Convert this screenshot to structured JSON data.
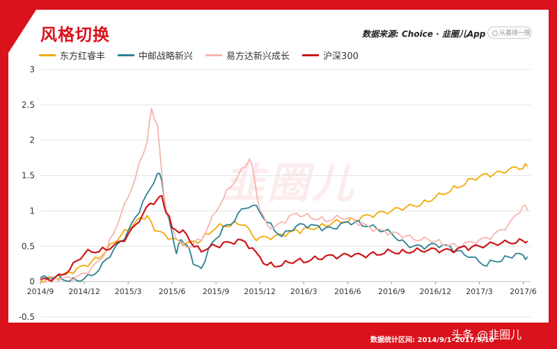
{
  "header": {
    "title": "风格切换",
    "source": "数据来源: Choice · 韭圈儿App",
    "search_placeholder": "从基排一搜"
  },
  "watermark": "韭圈儿",
  "footer": {
    "range_label": "数据统计区间: 2014/9/1–2017/9/10",
    "credit": "头条 @韭圈儿"
  },
  "colors": {
    "background": "#d9121c",
    "east_red": "#f2a900",
    "zhongyou": "#2b7f93",
    "yifangda": "#f5b5ae",
    "hs300": "#cc1418"
  },
  "chart_data": {
    "type": "line",
    "x_ticks": [
      "2014/9",
      "2014/12",
      "2015/3",
      "2015/6",
      "2015/9",
      "2015/12",
      "2016/3",
      "2016/6",
      "2016/9",
      "2016/12",
      "2017/3",
      "2017/6"
    ],
    "y_ticks": [
      "3",
      "2.5",
      "2",
      "1.5",
      "1",
      "0.5",
      "0",
      "-0.5"
    ],
    "ylim": [
      -0.5,
      3
    ],
    "grid": true,
    "legend": "top-left",
    "series": [
      {
        "name": "东方红睿丰",
        "color": "#f2a900",
        "points": [
          [
            0,
            0.02
          ],
          [
            0.5,
            0.03
          ],
          [
            1,
            0.05
          ],
          [
            1.5,
            0.08
          ],
          [
            2,
            0.12
          ],
          [
            2.5,
            0.17
          ],
          [
            3,
            0.21
          ],
          [
            3.5,
            0.28
          ],
          [
            4,
            0.35
          ],
          [
            4.5,
            0.45
          ],
          [
            5,
            0.55
          ],
          [
            5.5,
            0.66
          ],
          [
            6,
            0.75
          ],
          [
            6.5,
            0.85
          ],
          [
            7,
            0.9
          ],
          [
            7.3,
            0.92
          ],
          [
            7.6,
            0.8
          ],
          [
            8,
            0.7
          ],
          [
            8.5,
            0.65
          ],
          [
            9,
            0.6
          ],
          [
            9.5,
            0.55
          ],
          [
            10,
            0.53
          ],
          [
            10.5,
            0.55
          ],
          [
            11,
            0.6
          ],
          [
            11.5,
            0.7
          ],
          [
            12,
            0.78
          ],
          [
            12.5,
            0.8
          ],
          [
            13,
            0.82
          ],
          [
            13.5,
            0.84
          ],
          [
            14,
            0.82
          ],
          [
            14.5,
            0.62
          ],
          [
            15,
            0.6
          ],
          [
            15.5,
            0.62
          ],
          [
            16,
            0.63
          ],
          [
            16.5,
            0.66
          ],
          [
            17,
            0.68
          ],
          [
            17.5,
            0.7
          ],
          [
            18,
            0.72
          ],
          [
            18.5,
            0.76
          ],
          [
            19,
            0.78
          ],
          [
            19.5,
            0.8
          ],
          [
            20,
            0.84
          ],
          [
            20.5,
            0.86
          ],
          [
            21,
            0.87
          ],
          [
            21.5,
            0.88
          ],
          [
            22,
            0.9
          ],
          [
            22.5,
            0.93
          ],
          [
            23,
            0.95
          ],
          [
            23.5,
            0.98
          ],
          [
            24,
            1.0
          ],
          [
            24.5,
            1.03
          ],
          [
            25,
            1.05
          ],
          [
            25.5,
            1.08
          ],
          [
            26,
            1.1
          ],
          [
            26.5,
            1.15
          ],
          [
            27,
            1.2
          ],
          [
            27.5,
            1.25
          ],
          [
            28,
            1.3
          ],
          [
            28.5,
            1.35
          ],
          [
            29,
            1.4
          ],
          [
            29.5,
            1.45
          ],
          [
            30,
            1.48
          ],
          [
            30.5,
            1.5
          ],
          [
            31,
            1.52
          ],
          [
            31.5,
            1.55
          ],
          [
            32,
            1.58
          ],
          [
            32.5,
            1.6
          ],
          [
            33,
            1.63
          ],
          [
            33.3,
            1.65
          ]
        ]
      },
      {
        "name": "中邮战略新兴",
        "color": "#2b7f93",
        "points": [
          [
            0,
            0.05
          ],
          [
            0.5,
            0.06
          ],
          [
            1,
            0.08
          ],
          [
            1.5,
            0.05
          ],
          [
            2,
            0.03
          ],
          [
            2.5,
            0.02
          ],
          [
            3,
            0.05
          ],
          [
            3.5,
            0.1
          ],
          [
            4,
            0.18
          ],
          [
            4.5,
            0.3
          ],
          [
            5,
            0.45
          ],
          [
            5.5,
            0.55
          ],
          [
            6,
            0.7
          ],
          [
            6.5,
            0.9
          ],
          [
            7,
            1.1
          ],
          [
            7.5,
            1.3
          ],
          [
            8,
            1.55
          ],
          [
            8.3,
            1.45
          ],
          [
            8.6,
            1.0
          ],
          [
            9,
            0.7
          ],
          [
            9.3,
            0.4
          ],
          [
            9.6,
            0.6
          ],
          [
            10,
            0.55
          ],
          [
            10.3,
            0.35
          ],
          [
            10.6,
            0.2
          ],
          [
            11,
            0.18
          ],
          [
            11.5,
            0.45
          ],
          [
            12,
            0.6
          ],
          [
            12.5,
            0.75
          ],
          [
            13,
            0.8
          ],
          [
            13.5,
            0.95
          ],
          [
            14,
            1.05
          ],
          [
            14.5,
            1.1
          ],
          [
            15,
            1.0
          ],
          [
            15.5,
            0.85
          ],
          [
            16,
            0.75
          ],
          [
            16.5,
            0.65
          ],
          [
            17,
            0.72
          ],
          [
            17.5,
            0.78
          ],
          [
            18,
            0.8
          ],
          [
            18.5,
            0.78
          ],
          [
            19,
            0.76
          ],
          [
            19.5,
            0.74
          ],
          [
            20,
            0.75
          ],
          [
            20.5,
            0.8
          ],
          [
            21,
            0.82
          ],
          [
            21.5,
            0.85
          ],
          [
            22,
            0.82
          ],
          [
            22.5,
            0.8
          ],
          [
            23,
            0.75
          ],
          [
            23.5,
            0.72
          ],
          [
            24,
            0.7
          ],
          [
            24.5,
            0.6
          ],
          [
            25,
            0.52
          ],
          [
            25.5,
            0.5
          ],
          [
            26,
            0.48
          ],
          [
            26.5,
            0.5
          ],
          [
            27,
            0.52
          ],
          [
            27.5,
            0.5
          ],
          [
            28,
            0.48
          ],
          [
            28.5,
            0.42
          ],
          [
            29,
            0.4
          ],
          [
            29.5,
            0.35
          ],
          [
            30,
            0.28
          ],
          [
            30.5,
            0.25
          ],
          [
            31,
            0.3
          ],
          [
            31.5,
            0.32
          ],
          [
            32,
            0.35
          ],
          [
            32.5,
            0.38
          ],
          [
            33,
            0.36
          ],
          [
            33.3,
            0.33
          ]
        ]
      },
      {
        "name": "易方达新兴成长",
        "color": "#f5b5ae",
        "points": [
          [
            0,
            0.02
          ],
          [
            0.5,
            0.03
          ],
          [
            1,
            0.05
          ],
          [
            1.5,
            0.04
          ],
          [
            2,
            0.03
          ],
          [
            2.5,
            0.06
          ],
          [
            3,
            0.1
          ],
          [
            3.5,
            0.18
          ],
          [
            4,
            0.28
          ],
          [
            4.5,
            0.45
          ],
          [
            5,
            0.7
          ],
          [
            5.5,
            0.95
          ],
          [
            6,
            1.2
          ],
          [
            6.5,
            1.5
          ],
          [
            7,
            1.8
          ],
          [
            7.3,
            2.0
          ],
          [
            7.6,
            2.45
          ],
          [
            8,
            2.2
          ],
          [
            8.3,
            1.5
          ],
          [
            8.6,
            1.0
          ],
          [
            9,
            0.75
          ],
          [
            9.5,
            0.55
          ],
          [
            10,
            0.48
          ],
          [
            10.5,
            0.55
          ],
          [
            11,
            0.6
          ],
          [
            11.5,
            0.8
          ],
          [
            12,
            1.0
          ],
          [
            12.5,
            1.2
          ],
          [
            13,
            1.35
          ],
          [
            13.5,
            1.5
          ],
          [
            14,
            1.65
          ],
          [
            14.3,
            1.75
          ],
          [
            14.6,
            1.5
          ],
          [
            15,
            1.0
          ],
          [
            15.5,
            0.8
          ],
          [
            16,
            0.75
          ],
          [
            16.5,
            0.82
          ],
          [
            17,
            0.9
          ],
          [
            17.5,
            0.95
          ],
          [
            18,
            0.95
          ],
          [
            18.5,
            0.92
          ],
          [
            19,
            0.9
          ],
          [
            19.5,
            0.88
          ],
          [
            20,
            0.9
          ],
          [
            20.5,
            0.92
          ],
          [
            21,
            0.9
          ],
          [
            21.5,
            0.85
          ],
          [
            22,
            0.8
          ],
          [
            22.5,
            0.75
          ],
          [
            23,
            0.72
          ],
          [
            23.5,
            0.7
          ],
          [
            24,
            0.68
          ],
          [
            24.5,
            0.66
          ],
          [
            25,
            0.64
          ],
          [
            25.5,
            0.62
          ],
          [
            26,
            0.6
          ],
          [
            26.5,
            0.6
          ],
          [
            27,
            0.58
          ],
          [
            27.5,
            0.55
          ],
          [
            28,
            0.52
          ],
          [
            28.5,
            0.5
          ],
          [
            29,
            0.52
          ],
          [
            29.5,
            0.55
          ],
          [
            30,
            0.58
          ],
          [
            30.5,
            0.6
          ],
          [
            31,
            0.65
          ],
          [
            31.5,
            0.72
          ],
          [
            32,
            0.8
          ],
          [
            32.5,
            0.92
          ],
          [
            33,
            1.08
          ],
          [
            33.3,
            1.02
          ]
        ]
      },
      {
        "name": "沪深300",
        "color": "#cc1418",
        "points": [
          [
            0,
            0.02
          ],
          [
            0.5,
            0.02
          ],
          [
            1,
            0.05
          ],
          [
            1.5,
            0.1
          ],
          [
            2,
            0.18
          ],
          [
            2.5,
            0.3
          ],
          [
            3,
            0.4
          ],
          [
            3.5,
            0.45
          ],
          [
            4,
            0.43
          ],
          [
            4.5,
            0.48
          ],
          [
            5,
            0.5
          ],
          [
            5.5,
            0.55
          ],
          [
            6,
            0.65
          ],
          [
            6.5,
            0.8
          ],
          [
            7,
            0.95
          ],
          [
            7.5,
            1.1
          ],
          [
            8,
            1.15
          ],
          [
            8.3,
            1.2
          ],
          [
            8.6,
            1.0
          ],
          [
            9,
            0.8
          ],
          [
            9.5,
            0.72
          ],
          [
            10,
            0.68
          ],
          [
            10.5,
            0.5
          ],
          [
            11,
            0.45
          ],
          [
            11.5,
            0.5
          ],
          [
            12,
            0.5
          ],
          [
            12.5,
            0.52
          ],
          [
            13,
            0.55
          ],
          [
            13.5,
            0.57
          ],
          [
            14,
            0.55
          ],
          [
            14.5,
            0.45
          ],
          [
            15,
            0.32
          ],
          [
            15.5,
            0.25
          ],
          [
            16,
            0.24
          ],
          [
            16.5,
            0.25
          ],
          [
            17,
            0.28
          ],
          [
            17.5,
            0.3
          ],
          [
            18,
            0.3
          ],
          [
            18.5,
            0.32
          ],
          [
            19,
            0.34
          ],
          [
            19.5,
            0.35
          ],
          [
            20,
            0.35
          ],
          [
            20.5,
            0.36
          ],
          [
            21,
            0.38
          ],
          [
            21.5,
            0.38
          ],
          [
            22,
            0.36
          ],
          [
            22.5,
            0.38
          ],
          [
            23,
            0.4
          ],
          [
            23.5,
            0.42
          ],
          [
            24,
            0.44
          ],
          [
            24.5,
            0.42
          ],
          [
            25,
            0.43
          ],
          [
            25.5,
            0.44
          ],
          [
            26,
            0.45
          ],
          [
            26.5,
            0.45
          ],
          [
            27,
            0.44
          ],
          [
            27.5,
            0.44
          ],
          [
            28,
            0.43
          ],
          [
            28.5,
            0.45
          ],
          [
            29,
            0.47
          ],
          [
            29.5,
            0.48
          ],
          [
            30,
            0.5
          ],
          [
            30.5,
            0.52
          ],
          [
            31,
            0.54
          ],
          [
            31.5,
            0.55
          ],
          [
            32,
            0.56
          ],
          [
            32.5,
            0.57
          ],
          [
            33,
            0.58
          ],
          [
            33.3,
            0.58
          ]
        ]
      }
    ]
  }
}
